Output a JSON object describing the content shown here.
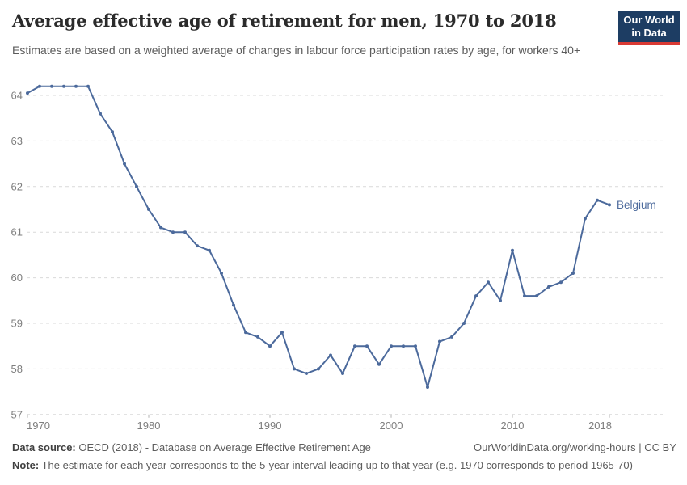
{
  "header": {
    "title": "Average effective age of retirement for men, 1970 to 2018",
    "subtitle": "Estimates are based on a weighted average of changes in labour force participation rates by age, for workers 40+"
  },
  "logo": {
    "line1": "Our World",
    "line2": "in Data",
    "bg_color": "#1d3d63",
    "accent_color": "#d93a34"
  },
  "chart_data": {
    "type": "line",
    "title": "Average effective age of retirement for men, 1970 to 2018",
    "xlabel": "",
    "ylabel": "",
    "ylim": [
      57,
      64.5
    ],
    "yticks": [
      57,
      58,
      59,
      60,
      61,
      62,
      63,
      64
    ],
    "xticks": [
      1970,
      1980,
      1990,
      2000,
      2010,
      2018
    ],
    "grid": "horizontal-dashed",
    "legend": "end-of-line-label",
    "series": [
      {
        "name": "Belgium",
        "color": "#4C6A9C",
        "x": [
          1970,
          1971,
          1972,
          1973,
          1974,
          1975,
          1976,
          1977,
          1978,
          1979,
          1980,
          1981,
          1982,
          1983,
          1984,
          1985,
          1986,
          1987,
          1988,
          1989,
          1990,
          1991,
          1992,
          1993,
          1994,
          1995,
          1996,
          1997,
          1998,
          1999,
          2000,
          2001,
          2002,
          2003,
          2004,
          2005,
          2006,
          2007,
          2008,
          2009,
          2010,
          2011,
          2012,
          2013,
          2014,
          2015,
          2016,
          2017,
          2018
        ],
        "values": [
          64.05,
          64.2,
          64.2,
          64.2,
          64.2,
          64.2,
          63.6,
          63.2,
          62.5,
          62.0,
          61.5,
          61.1,
          61.0,
          61.0,
          60.7,
          60.6,
          60.1,
          59.4,
          58.8,
          58.7,
          58.5,
          58.8,
          58.0,
          57.9,
          58.0,
          58.3,
          57.9,
          58.5,
          58.5,
          58.1,
          58.5,
          58.5,
          58.5,
          57.6,
          58.6,
          58.7,
          59.0,
          59.6,
          59.9,
          59.5,
          60.6,
          59.6,
          59.6,
          59.8,
          59.9,
          60.1,
          61.3,
          61.7,
          61.6
        ]
      }
    ]
  },
  "footer": {
    "source_label": "Data source:",
    "source_text": " OECD (2018) - Database on Average Effective Retirement Age",
    "attribution": "OurWorldinData.org/working-hours | CC BY",
    "note_label": "Note:",
    "note_text": " The estimate for each year corresponds to the 5-year interval leading up to that year (e.g. 1970 corresponds to period 1965-70)"
  }
}
